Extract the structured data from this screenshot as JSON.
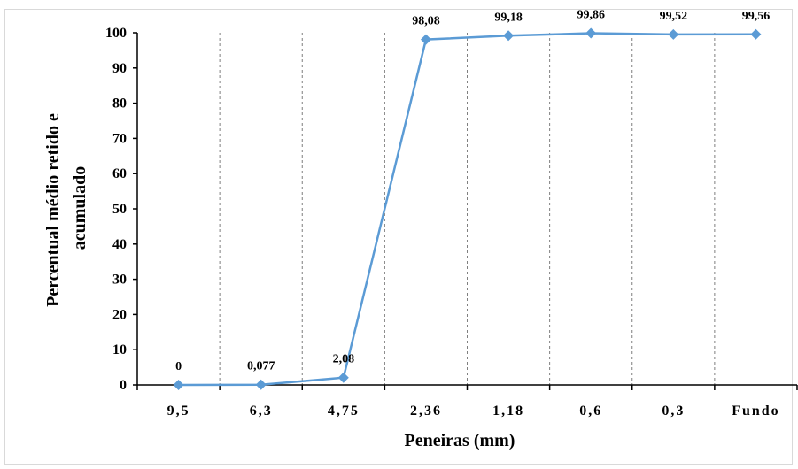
{
  "chart_data": {
    "type": "line",
    "title": "",
    "xlabel": "Peneiras (mm)",
    "ylabel_line1": "Percentual médio  retido e",
    "ylabel_line2": "acumulado",
    "categories": [
      "9,5",
      "6,3",
      "4,75",
      "2,36",
      "1,18",
      "0,6",
      "0,3",
      "Fundo"
    ],
    "series": [
      {
        "values": [
          0,
          0.077,
          2.08,
          98.08,
          99.18,
          99.86,
          99.52,
          99.56
        ],
        "labels": [
          "0",
          "0,077",
          "2,08",
          "98,08",
          "99,18",
          "99,86",
          "99,52",
          "99,56"
        ],
        "color": "#5b9bd5"
      }
    ],
    "ylim": [
      0,
      100
    ],
    "yticks": [
      "0",
      "10",
      "20",
      "30",
      "40",
      "50",
      "60",
      "70",
      "80",
      "90",
      "100"
    ],
    "grid": "vertical-dashed",
    "legend": "none"
  }
}
